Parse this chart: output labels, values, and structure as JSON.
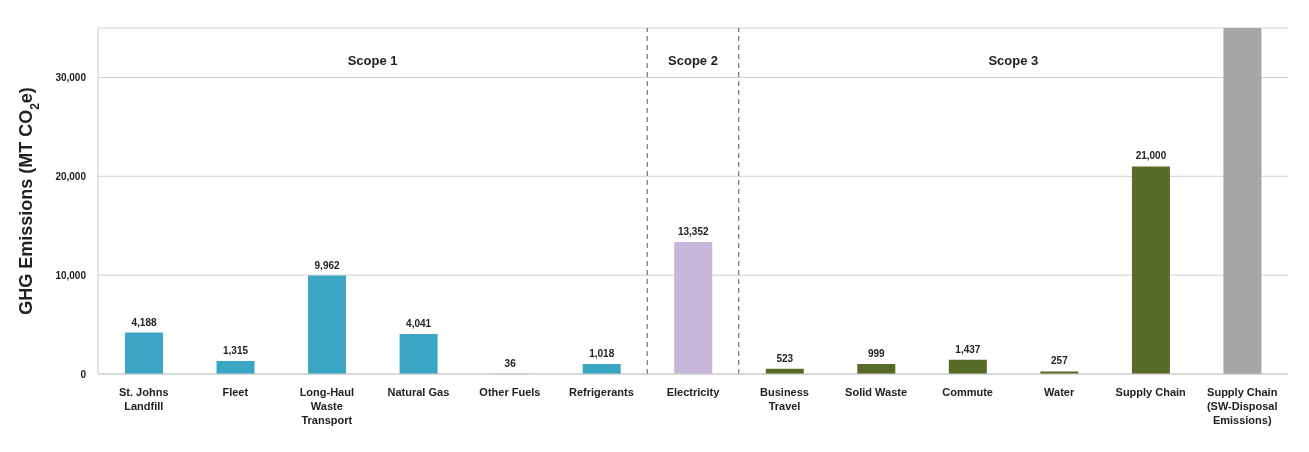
{
  "chart_data": {
    "type": "bar",
    "ylabel": "GHG Emissions (MT CO$_{2}$e)",
    "categories": [
      "St. Johns Landfill",
      "Fleet",
      "Long-Haul Waste Transport",
      "Natural Gas",
      "Other Fuels",
      "Refrigerants",
      "Electricity",
      "Business Travel",
      "Solid Waste",
      "Commute",
      "Water",
      "Supply Chain",
      "Supply Chain (SW-Disposal Emissions)"
    ],
    "values": [
      4188,
      1315,
      9962,
      4041,
      36,
      1018,
      13352,
      523,
      999,
      1437,
      257,
      21000,
      35000
    ],
    "colors": [
      "#3aa6c4",
      "#3aa6c4",
      "#3aa6c4",
      "#3aa6c4",
      "#3aa6c4",
      "#3aa6c4",
      "#c5b6da",
      "#586b28",
      "#586b28",
      "#586b28",
      "#586b28",
      "#586b28",
      "#a6a6a6"
    ],
    "value_labels": [
      "4,188",
      "1,315",
      "9,962",
      "4,041",
      "36",
      "1,018",
      "13,352",
      "523",
      "999",
      "1,437",
      "257",
      "21,000",
      null
    ],
    "ylim": [
      0,
      35000
    ],
    "yticks": [
      0,
      {
        "value": 10000,
        "label": "10,000"
      },
      {
        "value": 20000,
        "label": "20,000"
      },
      {
        "value": 30000,
        "label": "30,000"
      }
    ],
    "grid": "y",
    "annotations": [
      "Scope 1",
      "Scope 2",
      "Scope 3"
    ]
  }
}
